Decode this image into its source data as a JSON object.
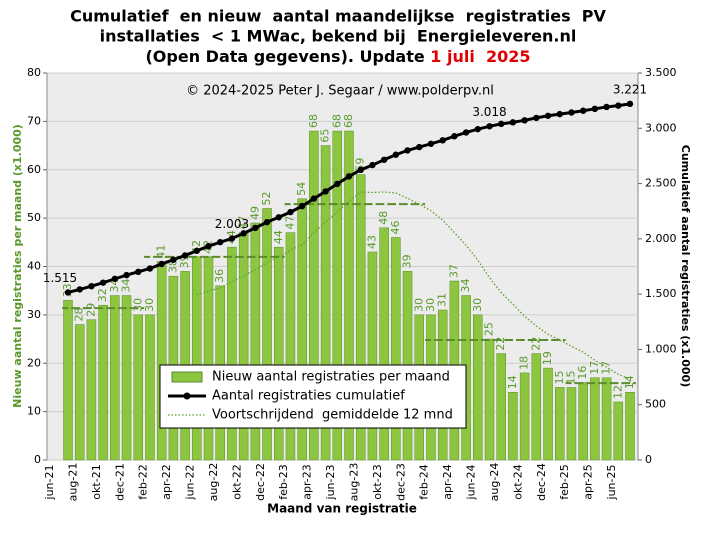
{
  "chart_data": {
    "type": "bar",
    "title_lines": [
      "Cumulatief  en nieuw  aantal maandelijkse  registraties  PV",
      "installaties  < 1 MWac, bekend bij  Energieleveren.nl",
      "(Open Data gegevens). Update "
    ],
    "update_date": "1 juli  2025",
    "update_color": "#e00000",
    "annotation": "© 2024-2025  Peter J. Segaar / www.polderpv.nl",
    "x_label": "Maand van registratie",
    "y_label": "Nieuw aantal registraties per maand (x1.000)",
    "y2_label": "Cumulatief aantal registraties (x1.000)",
    "categories": [
      "jun-21",
      null,
      "aug-21",
      null,
      "okt-21",
      null,
      "dec-21",
      null,
      "feb-22",
      null,
      "apr-22",
      null,
      "jun-22",
      null,
      "aug-22",
      null,
      "okt-22",
      null,
      "dec-22",
      null,
      "feb-23",
      null,
      "apr-23",
      null,
      "jun-23",
      null,
      "aug-23",
      null,
      "okt-23",
      null,
      "dec-23",
      null,
      "feb-24",
      null,
      "apr-24",
      null,
      "jun-24",
      null,
      "aug-24",
      null,
      "okt-24",
      null,
      "dec-24",
      null,
      "feb-25",
      null,
      "apr-25",
      null,
      "jun-25"
    ],
    "series": [
      {
        "name": "Nieuw aantal registraties per maand",
        "type": "bar",
        "color": "#8cc63f",
        "values": [
          33,
          28,
          29,
          32,
          34,
          34,
          30,
          30,
          41,
          38,
          39,
          42,
          42,
          36,
          44,
          47,
          49,
          52,
          44,
          47,
          54,
          68,
          65,
          68,
          68,
          59,
          43,
          48,
          46,
          39,
          30,
          30,
          31,
          37,
          34,
          30,
          25,
          22,
          14,
          18,
          22,
          19,
          15,
          15,
          16,
          17,
          17,
          12,
          14
        ]
      },
      {
        "name": "Aantal registraties cumulatief",
        "type": "line",
        "axis": "y2",
        "color": "#000000",
        "values": [
          1515,
          1543,
          1572,
          1604,
          1638,
          1672,
          1702,
          1732,
          1773,
          1811,
          1850,
          1892,
          1934,
          1970,
          2003,
          2050,
          2099,
          2151,
          2195,
          2242,
          2296,
          2364,
          2429,
          2497,
          2565,
          2624,
          2667,
          2715,
          2761,
          2800,
          2830,
          2860,
          2891,
          2928,
          2962,
          2992,
          3018,
          3040,
          3054,
          3072,
          3094,
          3113,
          3128,
          3143,
          3159,
          3176,
          3193,
          3205,
          3221
        ],
        "value_labels": [
          "1.515",
          null,
          null,
          null,
          null,
          null,
          null,
          null,
          null,
          null,
          null,
          null,
          null,
          null,
          "2.003",
          null,
          null,
          null,
          null,
          null,
          null,
          null,
          null,
          null,
          null,
          null,
          null,
          null,
          null,
          null,
          null,
          null,
          null,
          null,
          null,
          null,
          "3.018",
          null,
          null,
          null,
          null,
          null,
          null,
          null,
          null,
          null,
          null,
          null,
          "3.221"
        ]
      },
      {
        "name": "Voortschrijdend  gemiddelde 12 mnd",
        "type": "dotted",
        "color": "#5aa02c",
        "values": [
          null,
          null,
          null,
          null,
          null,
          null,
          null,
          null,
          null,
          null,
          null,
          34.2,
          34.9,
          35.6,
          36.8,
          38.1,
          39.3,
          40.8,
          42.0,
          43.4,
          44.5,
          47.0,
          49.2,
          51.3,
          53.5,
          55.4,
          55.3,
          55.4,
          55.2,
          54.1,
          52.9,
          51.5,
          49.6,
          47.0,
          44.4,
          41.3,
          37.7,
          34.6,
          32.2,
          29.7,
          27.7,
          26.0,
          24.8,
          23.5,
          22.3,
          20.6,
          19.2,
          17.7,
          16.8
        ]
      }
    ],
    "annual_averages": {
      "color": "#5a8a2c",
      "values": [
        31.4,
        31.4,
        31.4,
        31.4,
        31.4,
        31.4,
        31.4,
        42.0,
        42.0,
        42.0,
        42.0,
        42.0,
        42.0,
        42.0,
        42.0,
        42.0,
        42.0,
        42.0,
        42.0,
        52.9,
        52.9,
        52.9,
        52.9,
        52.9,
        52.9,
        52.9,
        52.9,
        52.9,
        52.9,
        52.9,
        52.9,
        24.8,
        24.8,
        24.8,
        24.8,
        24.8,
        24.8,
        24.8,
        24.8,
        24.8,
        24.8,
        24.8,
        24.8,
        15.9,
        15.9,
        15.9,
        15.9,
        15.9,
        15.9
      ]
    },
    "ylim": [
      0,
      80
    ],
    "yticks": [
      0,
      10,
      20,
      30,
      40,
      50,
      60,
      70,
      80
    ],
    "y2lim": [
      0,
      3500
    ],
    "y2ticks": [
      0,
      {
        "value": 500,
        "label": "500"
      },
      {
        "value": 1000,
        "label": "1.000"
      },
      {
        "value": 1500,
        "label": "1.500"
      },
      {
        "value": 2000,
        "label": "2.000"
      },
      {
        "value": 2500,
        "label": "2.500"
      },
      {
        "value": 3000,
        "label": "3.000"
      },
      {
        "value": 3500,
        "label": "3.500"
      }
    ],
    "grid": true
  }
}
